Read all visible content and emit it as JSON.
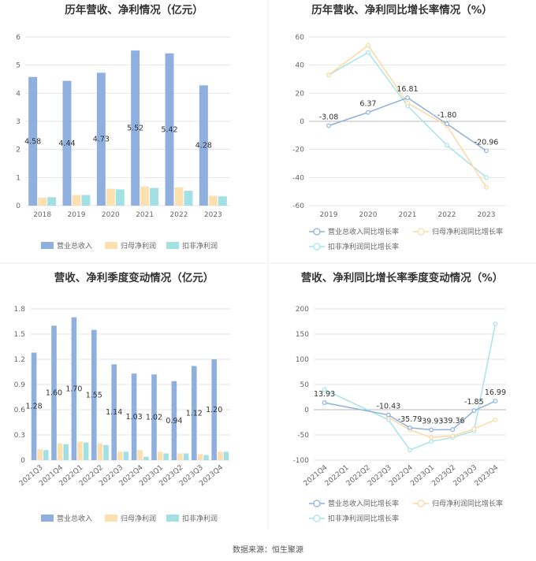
{
  "footer": {
    "source": "数据来源：恒生聚源"
  },
  "colors": {
    "revenue": "#8fb0df",
    "net_profit": "#fde0b0",
    "deducted": "#a3e0e3",
    "revenue_line": "#8fb0df",
    "net_line": "#fcd9a3",
    "deducted_line": "#a7e3e8"
  },
  "chart_data": [
    {
      "type": "bar",
      "title": "历年营收、净利情况（亿元）",
      "categories": [
        "2018",
        "2019",
        "2020",
        "2021",
        "2022",
        "2023"
      ],
      "ylim": [
        0,
        6
      ],
      "yticks": [
        0,
        1,
        2,
        3,
        4,
        5,
        6
      ],
      "series": [
        {
          "name": "营业总收入",
          "values": [
            4.58,
            4.44,
            4.73,
            5.52,
            5.42,
            4.28
          ],
          "labels": [
            "4.58",
            "4.44",
            "4.73",
            "5.52",
            "5.42",
            "4.28"
          ]
        },
        {
          "name": "归母净利润",
          "values": [
            0.28,
            0.38,
            0.6,
            0.68,
            0.65,
            0.35
          ]
        },
        {
          "name": "扣非净利润",
          "values": [
            0.3,
            0.38,
            0.58,
            0.63,
            0.53,
            0.33
          ]
        }
      ],
      "legend": "bottom"
    },
    {
      "type": "line",
      "title": "历年营收、净利同比增长率情况（%）",
      "categories": [
        "2019",
        "2020",
        "2021",
        "2022",
        "2023"
      ],
      "ylim": [
        -60,
        60
      ],
      "yticks": [
        -60,
        -40,
        -20,
        0,
        20,
        40,
        60
      ],
      "series": [
        {
          "name": "营业总收入同比增长率",
          "values": [
            -3.08,
            6.37,
            16.81,
            -1.8,
            -20.96
          ],
          "labels": [
            "-3.08",
            "6.37",
            "16.81",
            "-1.80",
            "-20.96"
          ]
        },
        {
          "name": "归母净利润同比增长率",
          "values": [
            33,
            54,
            13,
            -3,
            -47
          ]
        },
        {
          "name": "扣非净利润同比增长率",
          "values": [
            33,
            49,
            11,
            -17,
            -40
          ]
        }
      ],
      "legend": "bottom"
    },
    {
      "type": "bar",
      "title": "营收、净利季度变动情况（亿元）",
      "categories": [
        "2021Q3",
        "2021Q4",
        "2022Q1",
        "2022Q2",
        "2022Q3",
        "2022Q4",
        "2023Q1",
        "2023Q2",
        "2023Q3",
        "2023Q4"
      ],
      "ylim": [
        0,
        1.8
      ],
      "yticks": [
        "0",
        "0.3",
        "0.6",
        "0.9",
        "1.2",
        "1.5",
        "1.8"
      ],
      "series": [
        {
          "name": "营业总收入",
          "values": [
            1.28,
            1.6,
            1.7,
            1.55,
            1.14,
            1.03,
            1.02,
            0.94,
            1.12,
            1.2
          ],
          "labels": [
            "1.28",
            "1.60",
            "1.70",
            "1.55",
            "1.14",
            "1.03",
            "1.02",
            "0.94",
            "1.12",
            "1.20"
          ]
        },
        {
          "name": "归母净利润",
          "values": [
            0.13,
            0.2,
            0.22,
            0.2,
            0.1,
            0.12,
            0.1,
            0.08,
            0.07,
            0.1
          ]
        },
        {
          "name": "扣非净利润",
          "values": [
            0.12,
            0.19,
            0.21,
            0.18,
            0.1,
            0.04,
            0.08,
            0.08,
            0.06,
            0.1
          ]
        }
      ],
      "legend": "bottom"
    },
    {
      "type": "line",
      "title": "营收、净利同比增长率季度变动情况（%）",
      "categories": [
        "2021Q4",
        "2022Q1",
        "2022Q2",
        "2022Q3",
        "2022Q4",
        "2023Q1",
        "2023Q2",
        "2023Q3",
        "2023Q4"
      ],
      "ylim": [
        -100,
        200
      ],
      "yticks": [
        -100,
        -50,
        0,
        50,
        100,
        150,
        200
      ],
      "series": [
        {
          "name": "营业总收入同比增长率",
          "values": [
            13.93,
            null,
            null,
            -10.43,
            -35.79,
            -39.93,
            -39.36,
            -1.85,
            16.99
          ],
          "labels": [
            "13.93",
            "",
            "",
            "-10.43",
            "-35.79",
            "-39.93",
            "-39.36",
            "-1.85",
            "16.99"
          ]
        },
        {
          "name": "归母净利润同比增长率",
          "values": [
            null,
            null,
            null,
            -15,
            -40,
            -55,
            -52,
            -38,
            -20
          ]
        },
        {
          "name": "扣非净利润同比增长率",
          "values": [
            40,
            null,
            null,
            -20,
            -80,
            -63,
            -55,
            -42,
            170
          ]
        }
      ],
      "legend": "bottom"
    }
  ]
}
